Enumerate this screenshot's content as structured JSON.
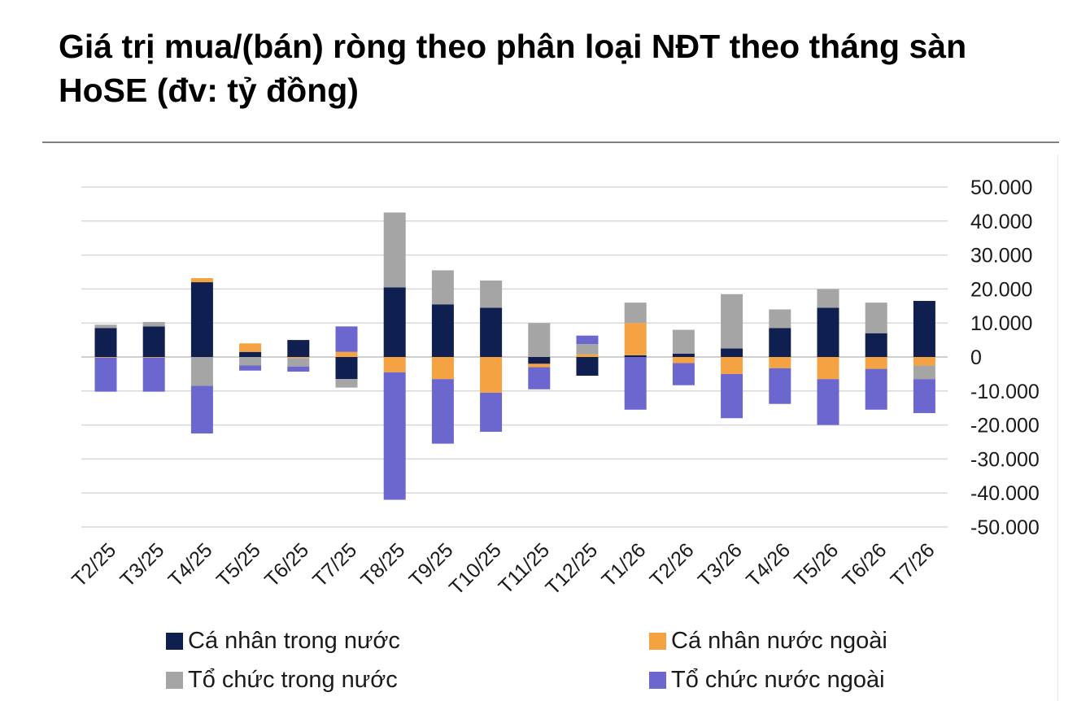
{
  "chart_data": {
    "type": "bar",
    "stacked": true,
    "title": "Giá trị mua/(bán) ròng theo phân loại NĐT theo tháng sàn HoSE (đv: tỷ đồng)",
    "xlabel": "",
    "ylabel": "",
    "ylim": [
      -50000,
      50000
    ],
    "yticks": [
      50000,
      40000,
      30000,
      20000,
      10000,
      0,
      -10000,
      -20000,
      -30000,
      -40000,
      -50000
    ],
    "ytick_labels": [
      "50.000",
      "40.000",
      "30.000",
      "20.000",
      "10.000",
      "0",
      "-10.000",
      "-20.000",
      "-30.000",
      "-40.000",
      "-50.000"
    ],
    "y_axis_position": "right",
    "grid": true,
    "legend_position": "bottom",
    "categories": [
      "T2/25",
      "T3/25",
      "T4/25",
      "T5/25",
      "T6/25",
      "T7/25",
      "T8/25",
      "T9/25",
      "T10/25",
      "T11/25",
      "T12/25",
      "T1/26",
      "T2/26",
      "T3/26",
      "T4/26",
      "T5/26",
      "T6/26",
      "T7/26"
    ],
    "series": [
      {
        "name": "Cá nhân trong nước",
        "color": "#0f1f4f",
        "values": [
          8500,
          9000,
          22000,
          1500,
          5000,
          -6500,
          20500,
          15500,
          14500,
          -2000,
          -5500,
          500,
          1000,
          2500,
          8500,
          14500,
          7000,
          16500
        ]
      },
      {
        "name": "Cá nhân nước ngoài",
        "color": "#f5a242",
        "values": [
          -200,
          -200,
          1200,
          2500,
          -300,
          1500,
          -4500,
          -6500,
          -10500,
          -1000,
          800,
          9500,
          -1800,
          -5000,
          -3300,
          -6500,
          -3500,
          -2500
        ]
      },
      {
        "name": "Tổ chức trong nước",
        "color": "#a5a5a5",
        "values": [
          1000,
          1300,
          -8500,
          -2500,
          -2500,
          -2500,
          22000,
          10000,
          8000,
          10000,
          3000,
          6000,
          7000,
          16000,
          5500,
          5500,
          9000,
          -4000
        ]
      },
      {
        "name": "Tổ chức nước ngoài",
        "color": "#6b67cf",
        "values": [
          -10000,
          -10000,
          -14000,
          -1500,
          -1500,
          7500,
          -37500,
          -19000,
          -11500,
          -6500,
          2500,
          -15500,
          -6500,
          -13000,
          -10500,
          -13500,
          -12000,
          -10000
        ]
      }
    ]
  }
}
